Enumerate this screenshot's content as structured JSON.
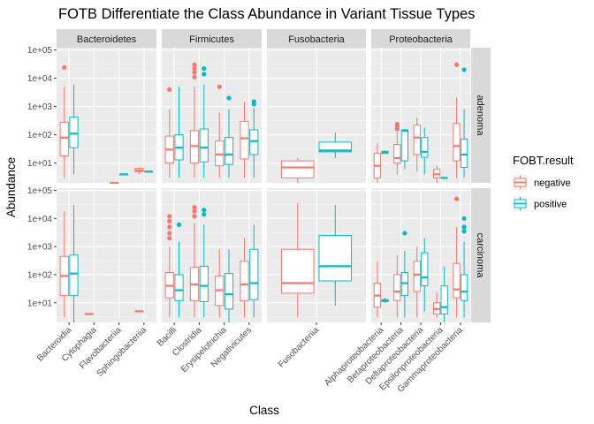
{
  "chart_data": {
    "type": "box",
    "title": "FOTB Differentiate the Class Abundance in Variant Tissue Types",
    "xlabel": "Class",
    "ylabel": "Abundance",
    "yscale": "log10",
    "ylim": [
      2,
      120000
    ],
    "yticks": [
      {
        "value": 10,
        "label": "1e+01"
      },
      {
        "value": 100,
        "label": "1e+02"
      },
      {
        "value": 1000,
        "label": "1e+03"
      },
      {
        "value": 10000,
        "label": "1e+04"
      },
      {
        "value": 100000,
        "label": "1e+05"
      }
    ],
    "legend": {
      "title": "FOBT.result",
      "position": "right",
      "entries": [
        {
          "label": "negative",
          "color": "#F8766D"
        },
        {
          "label": "positive",
          "color": "#00BFC4"
        }
      ]
    },
    "colors": {
      "negative": "#F8766D",
      "positive": "#00BFC4",
      "panel": "#EBEBEB",
      "strip": "#D9D9D9"
    },
    "columns": [
      {
        "name": "Bacteroidetes",
        "classes": [
          "Bacteroidia",
          "Cytophagia",
          "Flavobacteriia",
          "Sphingobacteriia"
        ]
      },
      {
        "name": "Firmicutes",
        "classes": [
          "Bacilli",
          "Clostridia",
          "Erysipelotrichia",
          "Negativicutes"
        ]
      },
      {
        "name": "Fusobacteria",
        "classes": [
          "Fusobacteriia"
        ]
      },
      {
        "name": "Proteobacteria",
        "classes": [
          "Alphaproteobacteria",
          "Betaproteobacteria",
          "Deltaproteobacteria",
          "Epsilonproteobacteria",
          "Gammaproteobacteria"
        ]
      }
    ],
    "rows": [
      "adenoma",
      "carcinoma"
    ],
    "boxes": [
      {
        "row": "adenoma",
        "column": "Bacteroidetes",
        "class": "Bacteroidia",
        "group": "negative",
        "min": 3,
        "q1": 18,
        "median": 80,
        "q3": 280,
        "max": 5000,
        "outliers": [
          24000
        ]
      },
      {
        "row": "adenoma",
        "column": "Bacteroidetes",
        "class": "Bacteroidia",
        "group": "positive",
        "min": 4,
        "q1": 35,
        "median": 110,
        "q3": 420,
        "max": 6000,
        "outliers": []
      },
      {
        "row": "adenoma",
        "column": "Bacteroidetes",
        "class": "Flavobacteriia",
        "group": "negative",
        "min": 2,
        "q1": 2,
        "median": 2,
        "q3": 2,
        "max": 2,
        "outliers": []
      },
      {
        "row": "adenoma",
        "column": "Bacteroidetes",
        "class": "Flavobacteriia",
        "group": "positive",
        "min": 4,
        "q1": 4,
        "median": 4,
        "q3": 4,
        "max": 4,
        "outliers": []
      },
      {
        "row": "adenoma",
        "column": "Bacteroidetes",
        "class": "Sphingobacteriia",
        "group": "negative",
        "min": 4,
        "q1": 5,
        "median": 5.5,
        "q3": 6.5,
        "max": 7,
        "outliers": []
      },
      {
        "row": "adenoma",
        "column": "Bacteroidetes",
        "class": "Sphingobacteriia",
        "group": "positive",
        "min": 5,
        "q1": 5,
        "median": 5,
        "q3": 5,
        "max": 5,
        "outliers": []
      },
      {
        "row": "adenoma",
        "column": "Firmicutes",
        "class": "Bacilli",
        "group": "negative",
        "min": 3,
        "q1": 10,
        "median": 30,
        "q3": 90,
        "max": 800,
        "outliers": [
          4000
        ]
      },
      {
        "row": "adenoma",
        "column": "Firmicutes",
        "class": "Bacilli",
        "group": "positive",
        "min": 3,
        "q1": 13,
        "median": 35,
        "q3": 100,
        "max": 5000,
        "outliers": []
      },
      {
        "row": "adenoma",
        "column": "Firmicutes",
        "class": "Clostridia",
        "group": "negative",
        "min": 3,
        "q1": 10,
        "median": 40,
        "q3": 140,
        "max": 5000,
        "outliers": [
          11000,
          16000,
          22000,
          30000
        ]
      },
      {
        "row": "adenoma",
        "column": "Firmicutes",
        "class": "Clostridia",
        "group": "positive",
        "min": 3,
        "q1": 11,
        "median": 35,
        "q3": 160,
        "max": 6000,
        "outliers": [
          14000,
          22000
        ]
      },
      {
        "row": "adenoma",
        "column": "Firmicutes",
        "class": "Erysipelotrichia",
        "group": "negative",
        "min": 3,
        "q1": 8,
        "median": 20,
        "q3": 60,
        "max": 600,
        "outliers": [
          5000
        ]
      },
      {
        "row": "adenoma",
        "column": "Firmicutes",
        "class": "Erysipelotrichia",
        "group": "positive",
        "min": 3,
        "q1": 9,
        "median": 20,
        "q3": 80,
        "max": 800,
        "outliers": [
          2000
        ]
      },
      {
        "row": "adenoma",
        "column": "Firmicutes",
        "class": "Negativicutes",
        "group": "negative",
        "min": 3,
        "q1": 14,
        "median": 75,
        "q3": 300,
        "max": 1500,
        "outliers": []
      },
      {
        "row": "adenoma",
        "column": "Firmicutes",
        "class": "Negativicutes",
        "group": "positive",
        "min": 3,
        "q1": 20,
        "median": 60,
        "q3": 150,
        "max": 900,
        "outliers": [
          1200,
          1500
        ]
      },
      {
        "row": "adenoma",
        "column": "Fusobacteria",
        "class": "Fusobacteriia",
        "group": "negative",
        "min": 2,
        "q1": 3,
        "median": 7,
        "q3": 12,
        "max": 15,
        "outliers": []
      },
      {
        "row": "adenoma",
        "column": "Fusobacteria",
        "class": "Fusobacteriia",
        "group": "positive",
        "min": 15,
        "q1": 25,
        "median": 28,
        "q3": 55,
        "max": 120,
        "outliers": []
      },
      {
        "row": "adenoma",
        "column": "Proteobacteria",
        "class": "Alphaproteobacteria",
        "group": "negative",
        "min": 2,
        "q1": 3,
        "median": 8,
        "q3": 22,
        "max": 50,
        "outliers": []
      },
      {
        "row": "adenoma",
        "column": "Proteobacteria",
        "class": "Alphaproteobacteria",
        "group": "positive",
        "min": 22,
        "q1": 22,
        "median": 24,
        "q3": 26,
        "max": 28,
        "outliers": []
      },
      {
        "row": "adenoma",
        "column": "Proteobacteria",
        "class": "Betaproteobacteria",
        "group": "negative",
        "min": 4,
        "q1": 10,
        "median": 15,
        "q3": 45,
        "max": 130,
        "outliers": [
          160,
          200,
          240
        ]
      },
      {
        "row": "adenoma",
        "column": "Proteobacteria",
        "class": "Betaproteobacteria",
        "group": "positive",
        "min": 6,
        "q1": 12,
        "median": 140,
        "q3": 150,
        "max": 160,
        "outliers": []
      },
      {
        "row": "adenoma",
        "column": "Proteobacteria",
        "class": "Deltaproteobacteria",
        "group": "negative",
        "min": 5,
        "q1": 20,
        "median": 80,
        "q3": 220,
        "max": 400,
        "outliers": []
      },
      {
        "row": "adenoma",
        "column": "Proteobacteria",
        "class": "Deltaproteobacteria",
        "group": "positive",
        "min": 4,
        "q1": 16,
        "median": 25,
        "q3": 80,
        "max": 180,
        "outliers": []
      },
      {
        "row": "adenoma",
        "column": "Proteobacteria",
        "class": "Epsilonproteobacteria",
        "group": "negative",
        "min": 2,
        "q1": 3,
        "median": 4,
        "q3": 6,
        "max": 8,
        "outliers": []
      },
      {
        "row": "adenoma",
        "column": "Proteobacteria",
        "class": "Epsilonproteobacteria",
        "group": "positive",
        "min": 3,
        "q1": 3,
        "median": 3,
        "q3": 3,
        "max": 3,
        "outliers": []
      },
      {
        "row": "adenoma",
        "column": "Proteobacteria",
        "class": "Gammaproteobacteria",
        "group": "negative",
        "min": 3,
        "q1": 12,
        "median": 40,
        "q3": 250,
        "max": 2000,
        "outliers": [
          30000
        ]
      },
      {
        "row": "adenoma",
        "column": "Proteobacteria",
        "class": "Gammaproteobacteria",
        "group": "positive",
        "min": 3,
        "q1": 7,
        "median": 20,
        "q3": 70,
        "max": 800,
        "outliers": [
          20000
        ]
      },
      {
        "row": "carcinoma",
        "column": "Bacteroidetes",
        "class": "Bacteroidia",
        "group": "negative",
        "min": 3,
        "q1": 18,
        "median": 90,
        "q3": 450,
        "max": 18000,
        "outliers": []
      },
      {
        "row": "carcinoma",
        "column": "Bacteroidetes",
        "class": "Bacteroidia",
        "group": "positive",
        "min": 2,
        "q1": 18,
        "median": 110,
        "q3": 500,
        "max": 30000,
        "outliers": []
      },
      {
        "row": "carcinoma",
        "column": "Bacteroidetes",
        "class": "Cytophagia",
        "group": "negative",
        "min": 4,
        "q1": 4,
        "median": 4,
        "q3": 4,
        "max": 4,
        "outliers": []
      },
      {
        "row": "carcinoma",
        "column": "Bacteroidetes",
        "class": "Sphingobacteriia",
        "group": "negative",
        "min": 5,
        "q1": 5,
        "median": 5,
        "q3": 5,
        "max": 5,
        "outliers": []
      },
      {
        "row": "carcinoma",
        "column": "Firmicutes",
        "class": "Bacilli",
        "group": "negative",
        "min": 3,
        "q1": 15,
        "median": 40,
        "q3": 120,
        "max": 1000,
        "outliers": [
          2000,
          3000,
          5000,
          8000,
          12000
        ]
      },
      {
        "row": "carcinoma",
        "column": "Firmicutes",
        "class": "Bacilli",
        "group": "positive",
        "min": 3,
        "q1": 12,
        "median": 28,
        "q3": 100,
        "max": 1500,
        "outliers": [
          6000
        ]
      },
      {
        "row": "carcinoma",
        "column": "Firmicutes",
        "class": "Clostridia",
        "group": "negative",
        "min": 3,
        "q1": 12,
        "median": 45,
        "q3": 180,
        "max": 7000,
        "outliers": [
          12000,
          18000,
          25000
        ]
      },
      {
        "row": "carcinoma",
        "column": "Firmicutes",
        "class": "Clostridia",
        "group": "positive",
        "min": 3,
        "q1": 11,
        "median": 40,
        "q3": 200,
        "max": 6000,
        "outliers": [
          14000,
          20000
        ]
      },
      {
        "row": "carcinoma",
        "column": "Firmicutes",
        "class": "Erysipelotrichia",
        "group": "negative",
        "min": 3,
        "q1": 8,
        "median": 28,
        "q3": 90,
        "max": 800,
        "outliers": []
      },
      {
        "row": "carcinoma",
        "column": "Firmicutes",
        "class": "Erysipelotrichia",
        "group": "positive",
        "min": 2,
        "q1": 6,
        "median": 20,
        "q3": 110,
        "max": 800,
        "outliers": []
      },
      {
        "row": "carcinoma",
        "column": "Firmicutes",
        "class": "Negativicutes",
        "group": "negative",
        "min": 3,
        "q1": 12,
        "median": 45,
        "q3": 300,
        "max": 2000,
        "outliers": []
      },
      {
        "row": "carcinoma",
        "column": "Firmicutes",
        "class": "Negativicutes",
        "group": "positive",
        "min": 3,
        "q1": 13,
        "median": 50,
        "q3": 800,
        "max": 6000,
        "outliers": []
      },
      {
        "row": "carcinoma",
        "column": "Fusobacteria",
        "class": "Fusobacteriia",
        "group": "negative",
        "min": 3,
        "q1": 22,
        "median": 50,
        "q3": 800,
        "max": 35000,
        "outliers": []
      },
      {
        "row": "carcinoma",
        "column": "Fusobacteria",
        "class": "Fusobacteriia",
        "group": "positive",
        "min": 8,
        "q1": 60,
        "median": 200,
        "q3": 2500,
        "max": 30000,
        "outliers": []
      },
      {
        "row": "carcinoma",
        "column": "Proteobacteria",
        "class": "Alphaproteobacteria",
        "group": "negative",
        "min": 3,
        "q1": 7,
        "median": 18,
        "q3": 50,
        "max": 300,
        "outliers": []
      },
      {
        "row": "carcinoma",
        "column": "Proteobacteria",
        "class": "Alphaproteobacteria",
        "group": "positive",
        "min": 10,
        "q1": 11,
        "median": 12,
        "q3": 13,
        "max": 15,
        "outliers": []
      },
      {
        "row": "carcinoma",
        "column": "Proteobacteria",
        "class": "Betaproteobacteria",
        "group": "negative",
        "min": 3,
        "q1": 12,
        "median": 25,
        "q3": 100,
        "max": 500,
        "outliers": []
      },
      {
        "row": "carcinoma",
        "column": "Proteobacteria",
        "class": "Betaproteobacteria",
        "group": "positive",
        "min": 3,
        "q1": 18,
        "median": 50,
        "q3": 120,
        "max": 700,
        "outliers": [
          3000
        ]
      },
      {
        "row": "carcinoma",
        "column": "Proteobacteria",
        "class": "Deltaproteobacteria",
        "group": "negative",
        "min": 3,
        "q1": 25,
        "median": 100,
        "q3": 300,
        "max": 1000,
        "outliers": []
      },
      {
        "row": "carcinoma",
        "column": "Proteobacteria",
        "class": "Deltaproteobacteria",
        "group": "positive",
        "min": 5,
        "q1": 40,
        "median": 80,
        "q3": 600,
        "max": 2000,
        "outliers": []
      },
      {
        "row": "carcinoma",
        "column": "Proteobacteria",
        "class": "Epsilonproteobacteria",
        "group": "negative",
        "min": 3,
        "q1": 4,
        "median": 6,
        "q3": 10,
        "max": 25,
        "outliers": []
      },
      {
        "row": "carcinoma",
        "column": "Proteobacteria",
        "class": "Epsilonproteobacteria",
        "group": "positive",
        "min": 2,
        "q1": 4,
        "median": 7,
        "q3": 40,
        "max": 200,
        "outliers": []
      },
      {
        "row": "carcinoma",
        "column": "Proteobacteria",
        "class": "Gammaproteobacteria",
        "group": "negative",
        "min": 3,
        "q1": 15,
        "median": 30,
        "q3": 250,
        "max": 5000,
        "outliers": [
          50000
        ]
      },
      {
        "row": "carcinoma",
        "column": "Proteobacteria",
        "class": "Gammaproteobacteria",
        "group": "positive",
        "min": 3,
        "q1": 12,
        "median": 25,
        "q3": 100,
        "max": 1500,
        "outliers": [
          3500,
          5000,
          10000
        ]
      }
    ]
  }
}
